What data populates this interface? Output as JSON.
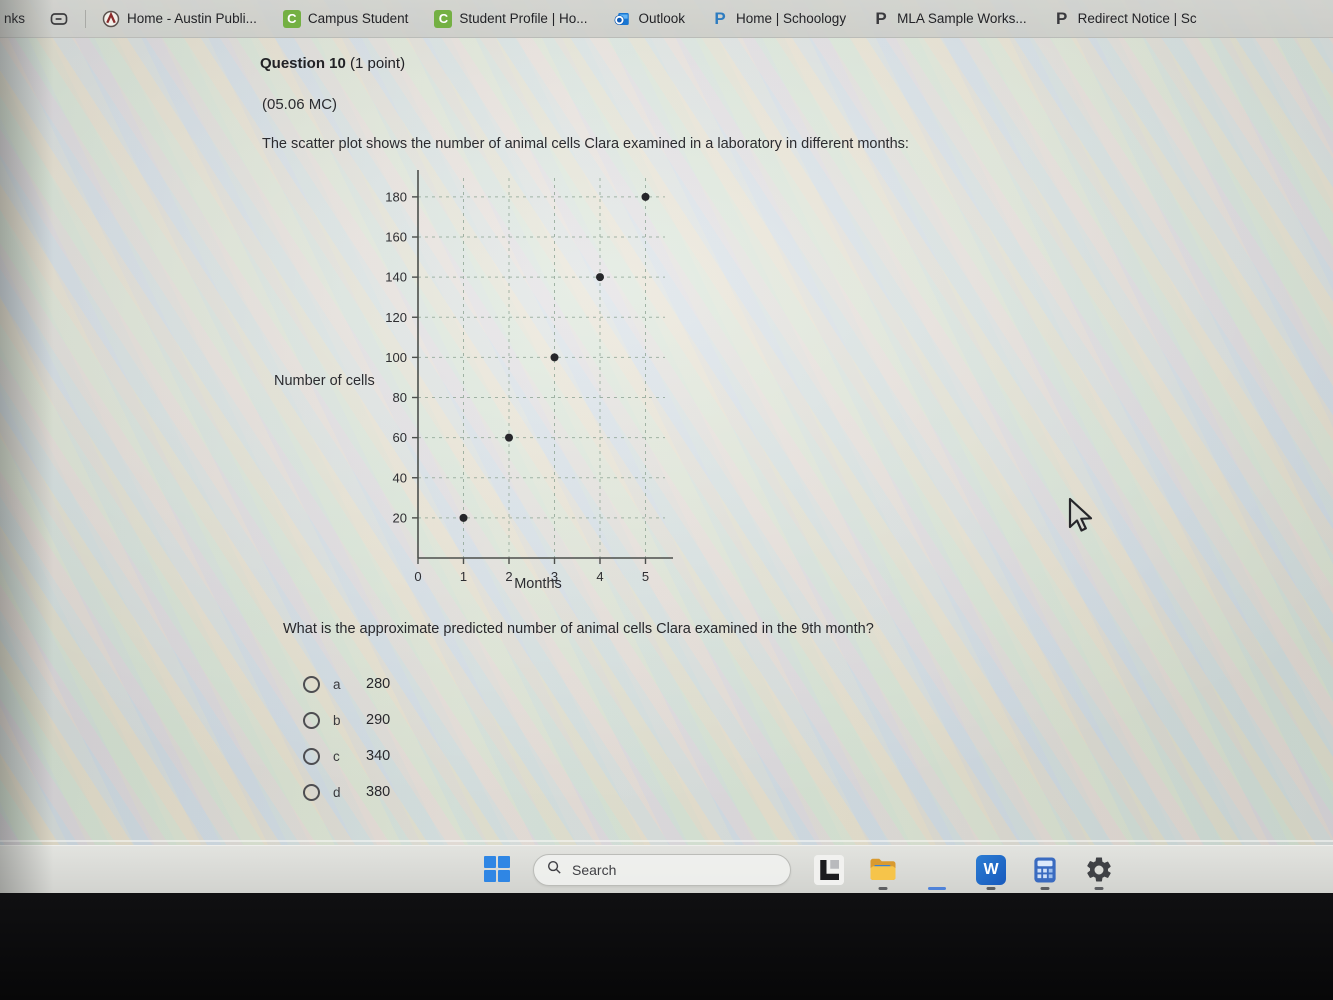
{
  "colors": {
    "bookmark_green": "#74b043",
    "outlook_blue": "#1565c0",
    "powerschool_blue": "#2e7cc0",
    "dark_p": "#3a3a3e",
    "edge_blue": "#1b6fd4",
    "taskbar_indicator_blue": "#4f82d8",
    "taskbar_indicator_gray": "#5d5f62",
    "folder_yellow": "#f6c44a"
  },
  "browser": {
    "bookmarks_bar": {
      "overflow_label": "nks",
      "items": [
        {
          "label": "Home - Austin Publi...",
          "icon": "austin-schools-favicon"
        },
        {
          "label": "Campus Student",
          "icon": "green-c-favicon",
          "icon_letter": "C"
        },
        {
          "label": "Student Profile | Ho...",
          "icon": "green-c-favicon",
          "icon_letter": "C"
        },
        {
          "label": "Outlook",
          "icon": "outlook-favicon"
        },
        {
          "label": "Home | Schoology",
          "icon": "powerschool-p-favicon",
          "icon_letter": "P"
        },
        {
          "label": "MLA Sample Works...",
          "icon": "dark-p-favicon",
          "icon_letter": "P"
        },
        {
          "label": "Redirect Notice | Sc",
          "icon": "dark-p-favicon",
          "icon_letter": "P"
        }
      ]
    }
  },
  "question": {
    "number": "Question 10",
    "points": "(1 point)",
    "code": "(05.06 MC)",
    "description": "The scatter plot shows the number of animal cells Clara examined in a laboratory in different months:",
    "prompt": "What is the approximate predicted number of animal cells Clara examined in the 9th month?",
    "options": [
      {
        "letter": "a",
        "value": "280",
        "selected": false
      },
      {
        "letter": "b",
        "value": "290",
        "selected": false
      },
      {
        "letter": "c",
        "value": "340",
        "selected": false
      },
      {
        "letter": "d",
        "value": "380",
        "selected": false
      }
    ]
  },
  "chart_data": {
    "type": "scatter",
    "title": "",
    "xlabel": "Months",
    "ylabel": "Number of cells",
    "x": [
      1,
      2,
      3,
      4,
      5
    ],
    "y": [
      20,
      60,
      100,
      140,
      180
    ],
    "points": [
      [
        1,
        20
      ],
      [
        2,
        60
      ],
      [
        3,
        100
      ],
      [
        4,
        140
      ],
      [
        5,
        180
      ]
    ],
    "x_ticks": [
      0,
      1,
      2,
      3,
      4,
      5
    ],
    "y_ticks": [
      20,
      40,
      60,
      80,
      100,
      120,
      140,
      160,
      180
    ],
    "xlim": [
      0,
      5.5
    ],
    "ylim": [
      0,
      190
    ],
    "grid": "dashed",
    "legend": "none"
  },
  "taskbar": {
    "search_placeholder": "Search",
    "word_letter": "W",
    "apps": [
      {
        "name": "lockdown-browser",
        "indicator": "none"
      },
      {
        "name": "file-explorer",
        "indicator": "gray"
      },
      {
        "name": "edge",
        "indicator": "blue"
      },
      {
        "name": "word",
        "indicator": "gray"
      },
      {
        "name": "calculator",
        "indicator": "gray"
      },
      {
        "name": "settings",
        "indicator": "gray"
      }
    ]
  }
}
